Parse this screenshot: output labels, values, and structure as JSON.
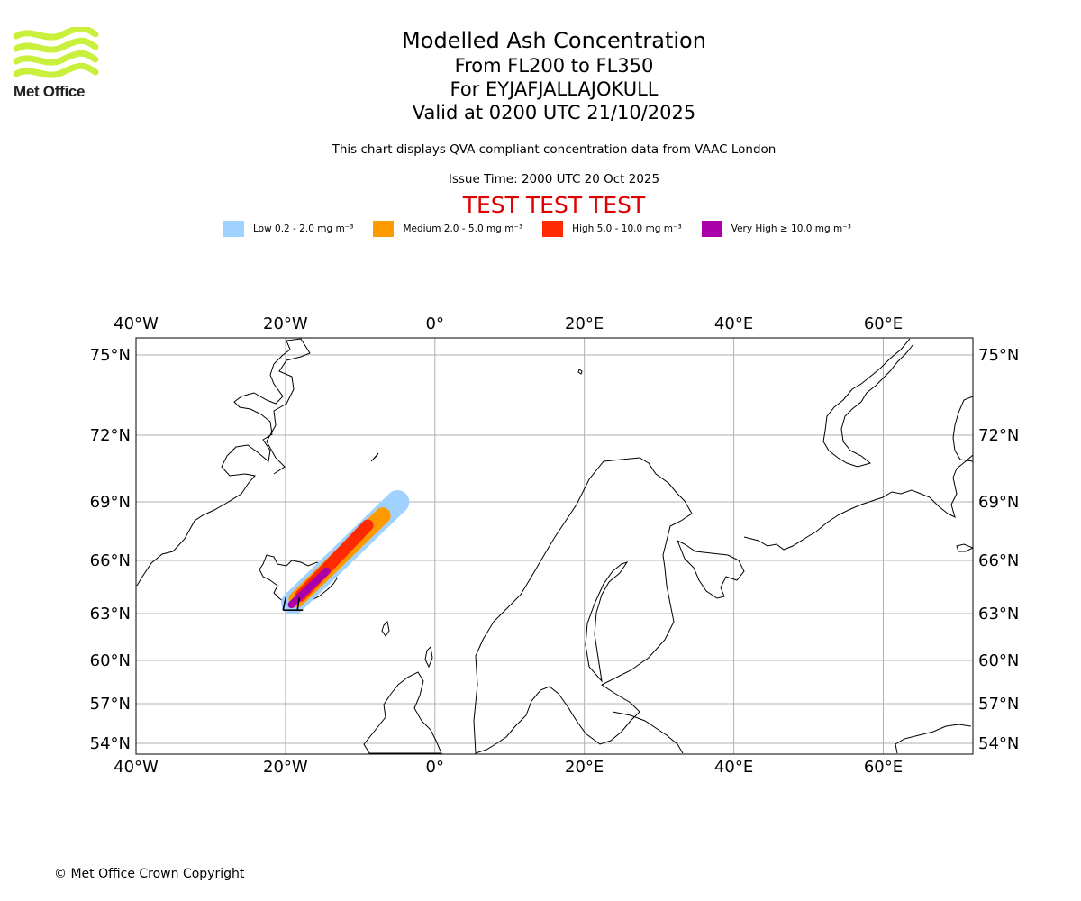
{
  "header": {
    "logo_text": "Met Office",
    "logo_color": "#c8f03c",
    "title": "Modelled Ash Concentration",
    "levels": "From FL200 to FL350",
    "volcano": "For EYJAFJALLAJOKULL",
    "valid": "Valid at 0200 UTC 21/10/2025",
    "note": "This chart displays QVA compliant concentration data from VAAC London",
    "issue": "Issue Time: 2000 UTC 20 Oct 2025",
    "test_banner": "TEST TEST TEST"
  },
  "legend": [
    {
      "label": "Low 0.2 - 2.0 mg m⁻³",
      "color": "#a0d2ff"
    },
    {
      "label": "Medium 2.0 - 5.0 mg m⁻³",
      "color": "#ff9900"
    },
    {
      "label": "High 5.0 - 10.0 mg m⁻³",
      "color": "#ff2a00"
    },
    {
      "label": "Very High ≥ 10.0 mg m⁻³",
      "color": "#aa00aa"
    }
  ],
  "map": {
    "lon_range": [
      -40,
      72
    ],
    "lat_range": [
      53.5,
      76
    ],
    "lon_ticks": [
      {
        "value": -40,
        "label": "40°W"
      },
      {
        "value": -20,
        "label": "20°W"
      },
      {
        "value": 0,
        "label": "0°"
      },
      {
        "value": 20,
        "label": "20°E"
      },
      {
        "value": 40,
        "label": "40°E"
      },
      {
        "value": 60,
        "label": "60°E"
      }
    ],
    "lat_ticks": [
      {
        "value": 75,
        "label": "75°N"
      },
      {
        "value": 72,
        "label": "72°N"
      },
      {
        "value": 69,
        "label": "69°N"
      },
      {
        "value": 66,
        "label": "66°N"
      },
      {
        "value": 63,
        "label": "63°N"
      },
      {
        "value": 60,
        "label": "60°N"
      },
      {
        "value": 57,
        "label": "57°N"
      },
      {
        "value": 54,
        "label": "54°N"
      }
    ],
    "volcano_location": {
      "lon": -19.6,
      "lat": 63.6
    },
    "ash_cloud": [
      {
        "level": "low",
        "color": "#a0d2ff",
        "from": {
          "lon": -19.0,
          "lat": 63.6
        },
        "to": {
          "lon": -5.0,
          "lat": 69.0
        }
      },
      {
        "level": "medium",
        "color": "#ff9900",
        "from": {
          "lon": -18.5,
          "lat": 63.8
        },
        "to": {
          "lon": -7.0,
          "lat": 68.3
        }
      },
      {
        "level": "high",
        "color": "#ff2a00",
        "from": {
          "lon": -18.0,
          "lat": 64.0
        },
        "to": {
          "lon": -9.0,
          "lat": 67.8
        }
      },
      {
        "level": "very_high",
        "color": "#aa00aa",
        "from": {
          "lon": -19.2,
          "lat": 63.5
        },
        "to": {
          "lon": -14.5,
          "lat": 65.4
        }
      }
    ]
  },
  "footer": {
    "copyright": "© Met Office Crown Copyright"
  }
}
